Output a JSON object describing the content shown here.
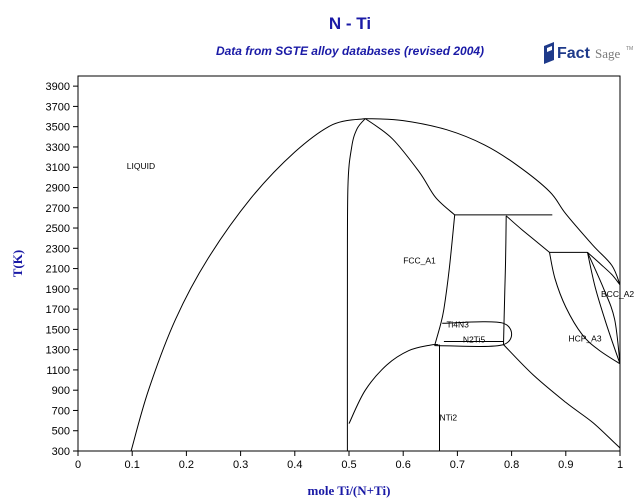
{
  "header": {
    "title": "N - Ti",
    "subtitle": "Data from SGTE alloy databases (revised 2004)",
    "logo_text": "FactSage",
    "logo_tm": "TM"
  },
  "colors": {
    "title": "#1a1aa6",
    "logo_blue": "#1e3a8a",
    "logo_gray": "#7a7a7a"
  },
  "chart_data": {
    "type": "phase-diagram",
    "title": "N - Ti",
    "subtitle": "Data from SGTE alloy databases (revised 2004)",
    "xlabel": "mole Ti/(N+Ti)",
    "ylabel": "T(K)",
    "xlim": [
      0,
      1
    ],
    "ylim": [
      300,
      4000
    ],
    "x_ticks": [
      "0",
      "0.1",
      "0.2",
      "0.3",
      "0.4",
      "0.5",
      "0.6",
      "0.7",
      "0.8",
      "0.9",
      "1"
    ],
    "y_ticks": [
      "300",
      "500",
      "700",
      "900",
      "1100",
      "1300",
      "1500",
      "1700",
      "1900",
      "2100",
      "2300",
      "2500",
      "2700",
      "2900",
      "3100",
      "3300",
      "3500",
      "3700",
      "3900"
    ],
    "regions": [
      {
        "label": "LIQUID",
        "x": 0.09,
        "y": 3080
      },
      {
        "label": "FCC_A1",
        "x": 0.6,
        "y": 2150
      },
      {
        "label": "Ti4N3",
        "x": 0.68,
        "y": 1520
      },
      {
        "label": "N2Ti5",
        "x": 0.71,
        "y": 1370
      },
      {
        "label": "HCP_A3",
        "x": 0.905,
        "y": 1380
      },
      {
        "label": "BCC_A2",
        "x": 0.965,
        "y": 1820
      },
      {
        "label": "NTi2",
        "x": 0.667,
        "y": 600
      }
    ],
    "curves": [
      {
        "name": "liquidus-left",
        "points": [
          [
            0.098,
            300
          ],
          [
            0.13,
            900
          ],
          [
            0.18,
            1600
          ],
          [
            0.24,
            2200
          ],
          [
            0.32,
            2800
          ],
          [
            0.4,
            3250
          ],
          [
            0.47,
            3520
          ],
          [
            0.53,
            3580
          ]
        ]
      },
      {
        "name": "fcc-left-boundary",
        "points": [
          [
            0.497,
            300
          ],
          [
            0.497,
            1800
          ],
          [
            0.498,
            2900
          ],
          [
            0.505,
            3300
          ],
          [
            0.515,
            3480
          ],
          [
            0.53,
            3580
          ]
        ]
      },
      {
        "name": "fcc-solidus-right",
        "points": [
          [
            0.53,
            3580
          ],
          [
            0.58,
            3380
          ],
          [
            0.63,
            3050
          ],
          [
            0.66,
            2800
          ],
          [
            0.695,
            2630
          ]
        ]
      },
      {
        "name": "liquidus-right",
        "points": [
          [
            0.53,
            3580
          ],
          [
            0.6,
            3560
          ],
          [
            0.68,
            3470
          ],
          [
            0.75,
            3320
          ],
          [
            0.81,
            3120
          ],
          [
            0.87,
            2860
          ],
          [
            0.9,
            2640
          ],
          [
            0.95,
            2330
          ],
          [
            0.985,
            2130
          ],
          [
            1.0,
            1940
          ]
        ]
      },
      {
        "name": "peritectic-fcc",
        "points": [
          [
            0.695,
            2630
          ],
          [
            0.875,
            2630
          ]
        ]
      },
      {
        "name": "fcc-right-boundary",
        "points": [
          [
            0.695,
            2630
          ],
          [
            0.685,
            2100
          ],
          [
            0.675,
            1700
          ],
          [
            0.668,
            1530
          ],
          [
            0.658,
            1340
          ]
        ]
      },
      {
        "name": "hcp-solidus-left",
        "points": [
          [
            0.79,
            2620
          ],
          [
            0.789,
            2200
          ],
          [
            0.787,
            1800
          ],
          [
            0.785,
            1350
          ]
        ]
      },
      {
        "name": "hcp-from-liquid",
        "points": [
          [
            0.79,
            2620
          ],
          [
            0.82,
            2480
          ],
          [
            0.87,
            2260
          ]
        ]
      },
      {
        "name": "peritectic-hcp",
        "points": [
          [
            0.87,
            2260
          ],
          [
            0.94,
            2260
          ]
        ]
      },
      {
        "name": "hcp-bcc-upper",
        "points": [
          [
            0.94,
            2260
          ],
          [
            0.965,
            2140
          ],
          [
            0.985,
            2040
          ],
          [
            1.0,
            1940
          ]
        ]
      },
      {
        "name": "hcp-right-boundary",
        "points": [
          [
            0.87,
            2260
          ],
          [
            0.88,
            2000
          ],
          [
            0.9,
            1720
          ],
          [
            0.93,
            1450
          ],
          [
            0.96,
            1300
          ],
          [
            1.0,
            1160
          ]
        ]
      },
      {
        "name": "bcc-transus",
        "points": [
          [
            0.94,
            2260
          ],
          [
            0.955,
            1900
          ],
          [
            0.975,
            1550
          ],
          [
            1.0,
            1160
          ]
        ]
      },
      {
        "name": "bcc-right",
        "points": [
          [
            0.94,
            2260
          ],
          [
            0.97,
            1900
          ],
          [
            0.99,
            1600
          ],
          [
            1.0,
            1160
          ]
        ]
      },
      {
        "name": "ti4n3-box",
        "points": [
          [
            0.672,
            1560
          ],
          [
            0.785,
            1560
          ],
          [
            0.785,
            1350
          ],
          [
            0.658,
            1340
          ]
        ]
      },
      {
        "name": "n2ti5-line",
        "points": [
          [
            0.675,
            1380
          ],
          [
            0.785,
            1380
          ]
        ]
      },
      {
        "name": "nti2-dome",
        "points": [
          [
            0.5,
            570
          ],
          [
            0.53,
            900
          ],
          [
            0.57,
            1150
          ],
          [
            0.61,
            1290
          ],
          [
            0.65,
            1345
          ],
          [
            0.665,
            1350
          ]
        ]
      },
      {
        "name": "nti2-line",
        "points": [
          [
            0.667,
            300
          ],
          [
            0.667,
            1350
          ]
        ]
      },
      {
        "name": "hcp-low-boundary",
        "points": [
          [
            0.785,
            1350
          ],
          [
            0.84,
            1050
          ],
          [
            0.9,
            780
          ],
          [
            0.95,
            580
          ],
          [
            0.99,
            380
          ],
          [
            1.0,
            330
          ]
        ]
      }
    ]
  }
}
